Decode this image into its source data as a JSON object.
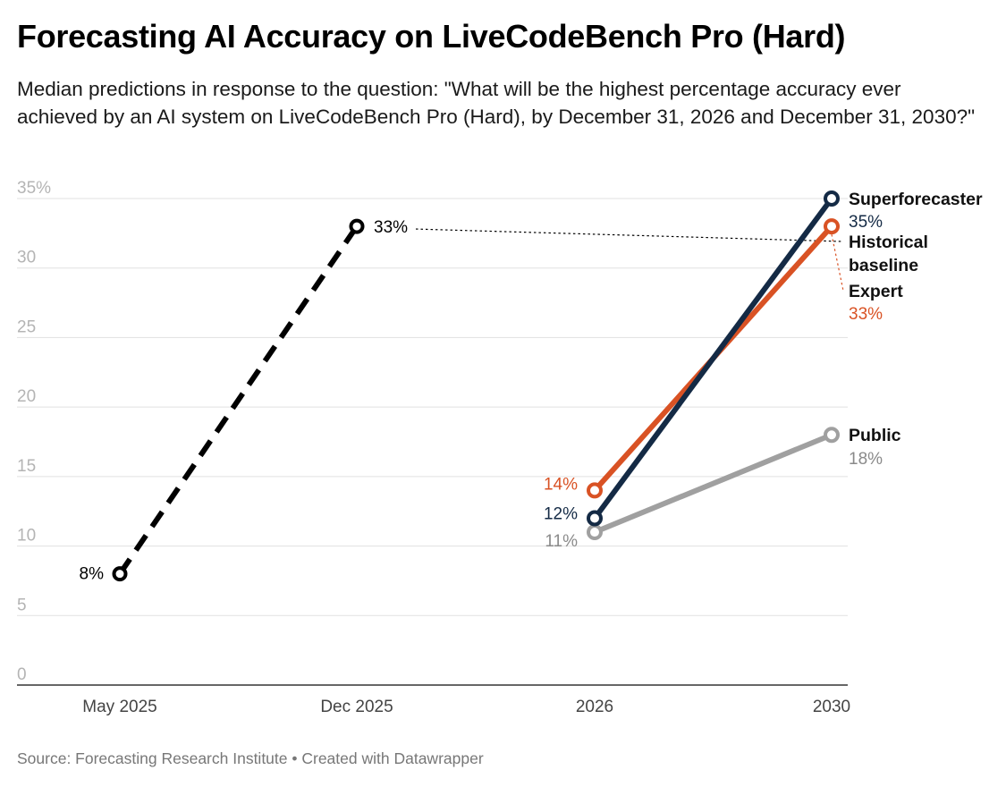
{
  "header": {
    "title": "Forecasting AI Accuracy on LiveCodeBench Pro (Hard)",
    "subtitle": "Median predictions in response to the question: \"What will be the highest percentage accuracy ever achieved by an AI system on LiveCodeBench Pro (Hard), by December 31, 2026 and December 31, 2030?\""
  },
  "footer": {
    "source": "Source: Forecasting Research Institute • Created with Datawrapper"
  },
  "chart_data": {
    "type": "line",
    "x": [
      "May 2025",
      "Dec 2025",
      "2026",
      "2030"
    ],
    "ylim": [
      0,
      35
    ],
    "yticks": [
      0,
      5,
      10,
      15,
      20,
      25,
      30,
      35
    ],
    "ytick_labels": [
      "0",
      "5",
      "10",
      "15",
      "20",
      "25",
      "30",
      "35%"
    ],
    "grid": true,
    "legend": "none (series labeled directly at line ends)",
    "series": [
      {
        "name": "Historical baseline",
        "x": [
          "May 2025",
          "Dec 2025"
        ],
        "values": [
          8,
          33
        ],
        "labels": [
          "8%",
          "33%"
        ],
        "color": "#000000",
        "style": "dashed"
      },
      {
        "name": "Superforecaster",
        "x": [
          "2026",
          "2030"
        ],
        "values": [
          12,
          35
        ],
        "labels": [
          "12%",
          "35%"
        ],
        "color": "#142a45"
      },
      {
        "name": "Expert",
        "x": [
          "2026",
          "2030"
        ],
        "values": [
          14,
          33
        ],
        "labels": [
          "14%",
          "33%"
        ],
        "color": "#d95224"
      },
      {
        "name": "Public",
        "x": [
          "2026",
          "2030"
        ],
        "values": [
          11,
          18
        ],
        "labels": [
          "11%",
          "18%"
        ],
        "color": "#a0a0a0"
      }
    ],
    "end_labels": [
      {
        "name": "Superforecaster",
        "lines": [
          "Superforecaster"
        ],
        "value_label": "35%",
        "color": "#142a45"
      },
      {
        "name": "Historical baseline",
        "lines": [
          "Historical",
          "baseline"
        ],
        "value_label": "",
        "color": "#000000"
      },
      {
        "name": "Expert",
        "lines": [
          "Expert"
        ],
        "value_label": "33%",
        "color": "#d95224"
      },
      {
        "name": "Public",
        "lines": [
          "Public"
        ],
        "value_label": "18%",
        "color": "#a0a0a0"
      }
    ]
  }
}
